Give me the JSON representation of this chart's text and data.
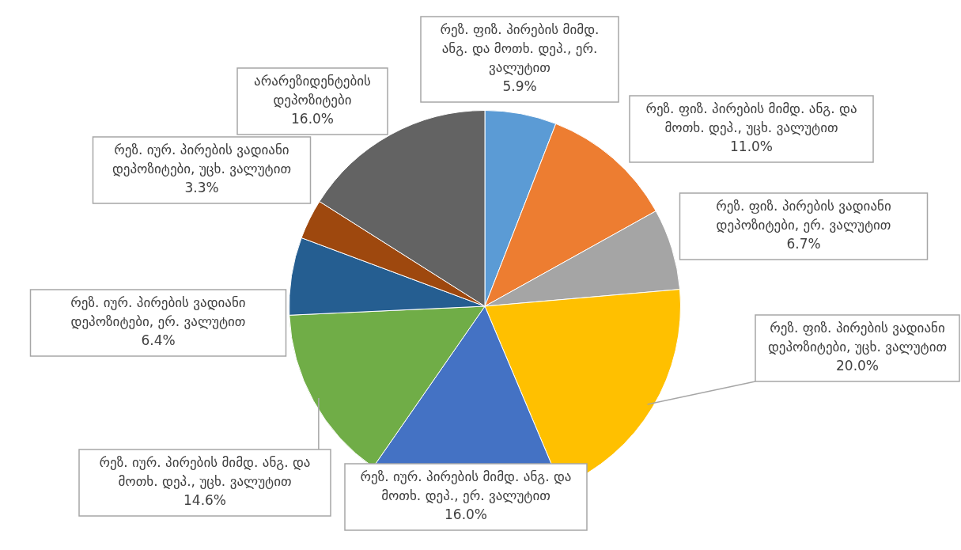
{
  "chart_data": {
    "type": "pie",
    "categories": [
      "რეზ. ფიზ. პირების მიმდ. ანგ. და მოთხ. დეპ., ერ. ვალუტით",
      "რეზ. ფიზ. პირების მიმდ. ანგ. და მოთხ. დეპ., უცხ. ვალუტით",
      "რეზ. ფიზ. პირების ვადიანი დეპოზიტები, ერ. ვალუტით",
      "რეზ. ფიზ. პირების ვადიანი დეპოზიტები, უცხ. ვალუტით",
      "რეზ. იურ. პირების მიმდ. ანგ. და მოთხ. დეპ., ერ. ვალუტით",
      "რეზ. იურ. პირების მიმდ. ანგ. და მოთხ. დეპ., უცხ. ვალუტით",
      "რეზ. იურ. პირების ვადიანი დეპოზიტები, ერ. ვალუტით",
      "რეზ. იურ. პირების ვადიანი დეპოზიტები, უცხ. ვალუტით",
      "არარეზიდენტების დეპოზიტები"
    ],
    "values": [
      5.9,
      11.0,
      6.7,
      20.0,
      16.0,
      14.6,
      6.4,
      3.3,
      16.0
    ],
    "colors": [
      "#5b9bd5",
      "#ed7d31",
      "#a5a5a5",
      "#ffc000",
      "#4472c4",
      "#70ad47",
      "#255e91",
      "#9e480e",
      "#636363"
    ],
    "value_labels": [
      "5.9%",
      "11.0%",
      "6.7%",
      "20.0%",
      "16.0%",
      "14.6%",
      "6.4%",
      "3.3%",
      "16.0%"
    ]
  }
}
